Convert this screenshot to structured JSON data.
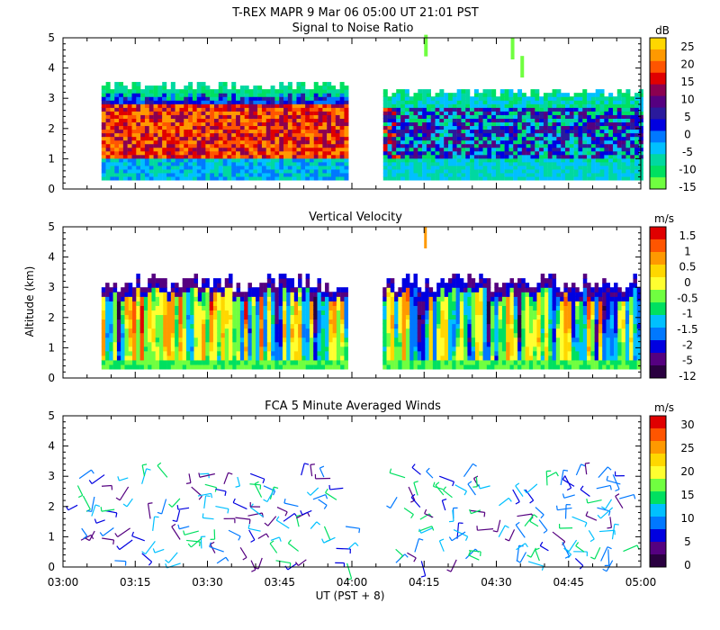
{
  "header": {
    "title": "T-REX   MAPR   9 Mar 06   05:00 UT   21:01   PST"
  },
  "shared": {
    "ylabel": "Altitude (km)",
    "xlabel": "UT  (PST + 8)",
    "x_ticks": [
      "03:00",
      "03:15",
      "03:30",
      "03:45",
      "04:00",
      "04:15",
      "04:30",
      "04:45",
      "05:00"
    ],
    "y_ticks": [
      "0",
      "1",
      "2",
      "3",
      "4",
      "5"
    ]
  },
  "chart_data": [
    {
      "type": "heatmap",
      "title": "Signal to Noise Ratio",
      "xlim": [
        "03:00",
        "05:00"
      ],
      "ylim": [
        0,
        5
      ],
      "data_gap": [
        "03:59",
        "04:06"
      ],
      "colorbar": {
        "unit": "dB",
        "ticks": [
          "25",
          "20",
          "15",
          "10",
          "5",
          "0",
          "-5",
          "-10",
          "-15"
        ],
        "colors": [
          "#ffd700",
          "#ff9900",
          "#ff5500",
          "#e00000",
          "#8b0050",
          "#550080",
          "#2a1a9c",
          "#0000e0",
          "#0078ff",
          "#00c0ff",
          "#00d8a0",
          "#00e060",
          "#70ff40"
        ]
      }
    },
    {
      "type": "heatmap",
      "title": "Vertical Velocity",
      "xlim": [
        "03:00",
        "05:00"
      ],
      "ylim": [
        0,
        5
      ],
      "data_gap": [
        "03:59",
        "04:06"
      ],
      "colorbar": {
        "unit": "m/s",
        "ticks": [
          "1.5",
          "1",
          "0.5",
          "0",
          "-0.5",
          "-1",
          "-1.5",
          "-2",
          "-5",
          "-12"
        ],
        "colors": [
          "#e00000",
          "#ff5500",
          "#ff9900",
          "#ffd700",
          "#ffff30",
          "#70ff40",
          "#00e060",
          "#00c0ff",
          "#0078ff",
          "#0000e0",
          "#550080",
          "#2a0040"
        ]
      }
    },
    {
      "type": "wind-barbs",
      "title": "FCA 5 Minute Averaged Winds",
      "xlim": [
        "03:00",
        "05:00"
      ],
      "ylim": [
        0,
        5
      ],
      "colorbar": {
        "unit": "m/s",
        "ticks": [
          "30",
          "25",
          "20",
          "15",
          "10",
          "5",
          "0"
        ],
        "colors": [
          "#e00000",
          "#ff5500",
          "#ff9900",
          "#ffd700",
          "#ffff30",
          "#70ff40",
          "#00e060",
          "#00c0ff",
          "#0078ff",
          "#0000e0",
          "#550080",
          "#2a0040"
        ]
      }
    }
  ]
}
